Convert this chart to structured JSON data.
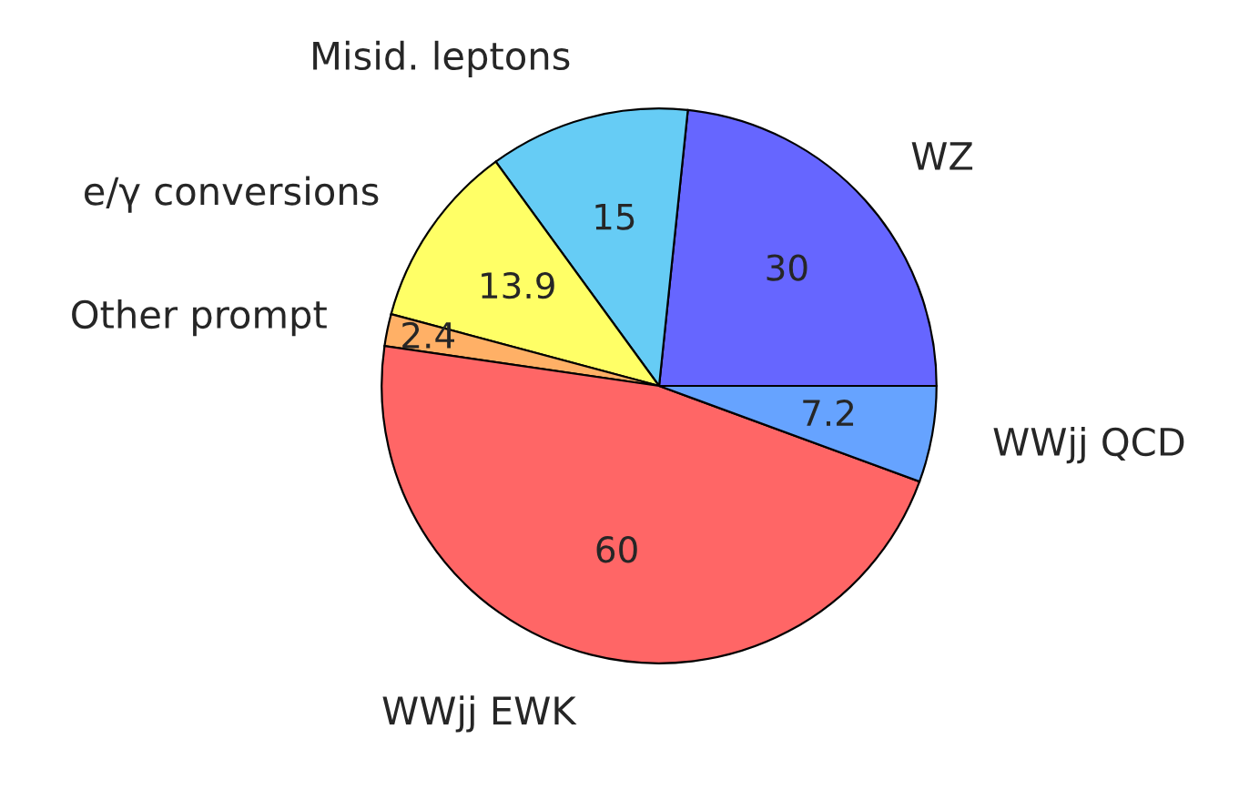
{
  "chart_data": {
    "type": "pie",
    "categories": [
      "WZ",
      "Misid. leptons",
      "e/γ conversions",
      "Other prompt",
      "WWjj EWK",
      "WWjj QCD"
    ],
    "values": [
      30,
      15,
      13.9,
      2.4,
      60,
      7.2
    ],
    "colors": [
      "#6666ff",
      "#66ccf5",
      "#ffff66",
      "#ffb066",
      "#ff6666",
      "#66a3ff"
    ],
    "data_labels": true
  }
}
